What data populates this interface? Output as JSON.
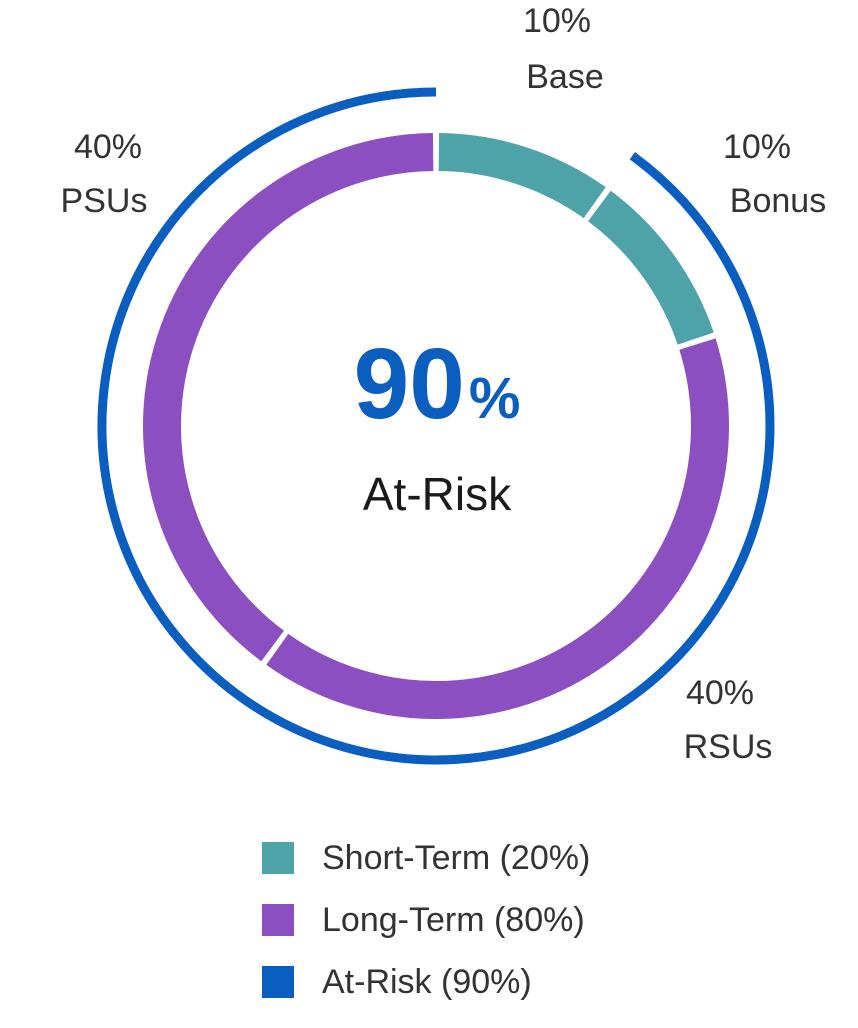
{
  "chart_data": {
    "type": "pie",
    "center": {
      "value": "90",
      "unit": "%",
      "label": "At-Risk"
    },
    "inner_ring": [
      {
        "pct_label": "10%",
        "name": "Base",
        "value": 10,
        "color": "#ffffff",
        "label_side": "top"
      },
      {
        "pct_label": "10%",
        "name": "Bonus",
        "value": 10,
        "color": "#4da3a8",
        "label_side": "right"
      },
      {
        "pct_label": "40%",
        "name": "RSUs",
        "value": 40,
        "color": "#8b4fc1",
        "label_side": "bottom-right"
      },
      {
        "pct_label": "40%",
        "name": "PSUs",
        "value": 40,
        "color": "#8b4fc1",
        "label_side": "left"
      }
    ],
    "outer_ring": {
      "value": 90,
      "color": "#0a5ec0"
    },
    "legend": [
      {
        "label": "Short-Term (20%)",
        "color": "#4da3a8"
      },
      {
        "label": "Long-Term (80%)",
        "color": "#8b4fc1"
      },
      {
        "label": "At-Risk (90%)",
        "color": "#0a5ec0"
      }
    ]
  },
  "colors": {
    "short_term": "#4da3a8",
    "long_term": "#8b4fc1",
    "at_risk": "#0a5ec0",
    "text": "#333333"
  }
}
